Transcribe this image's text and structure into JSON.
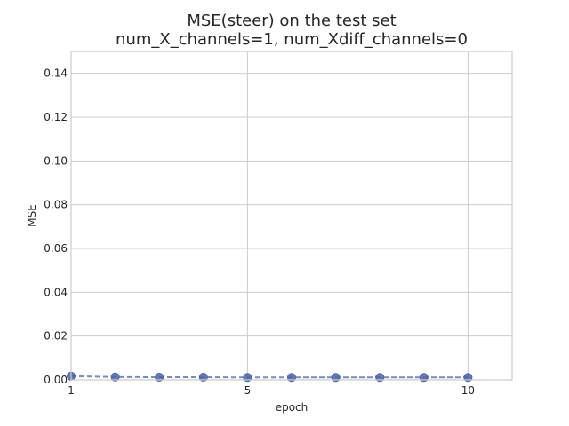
{
  "chart_data": {
    "type": "line",
    "title_line1": "MSE(steer) on the test set",
    "title_line2": "num_X_channels=1, num_Xdiff_channels=0",
    "xlabel": "epoch",
    "ylabel": "MSE",
    "xlim": [
      1,
      11
    ],
    "ylim": [
      0,
      0.15
    ],
    "xticks": [
      1,
      5,
      10
    ],
    "yticks": [
      0.0,
      0.02,
      0.04,
      0.06,
      0.08,
      0.1,
      0.12,
      0.14
    ],
    "ytick_labels": [
      "0.00",
      "0.02",
      "0.04",
      "0.06",
      "0.08",
      "0.10",
      "0.12",
      "0.14"
    ],
    "grid": true,
    "line_style": "dashed",
    "marker": "circle",
    "color": "#4c63a6",
    "series": [
      {
        "x": [
          1,
          2,
          3,
          4,
          5,
          6,
          7,
          8,
          9,
          10
        ],
        "values": [
          0.0017,
          0.0013,
          0.0012,
          0.0012,
          0.0011,
          0.0011,
          0.0011,
          0.0011,
          0.0011,
          0.0011
        ]
      }
    ]
  }
}
